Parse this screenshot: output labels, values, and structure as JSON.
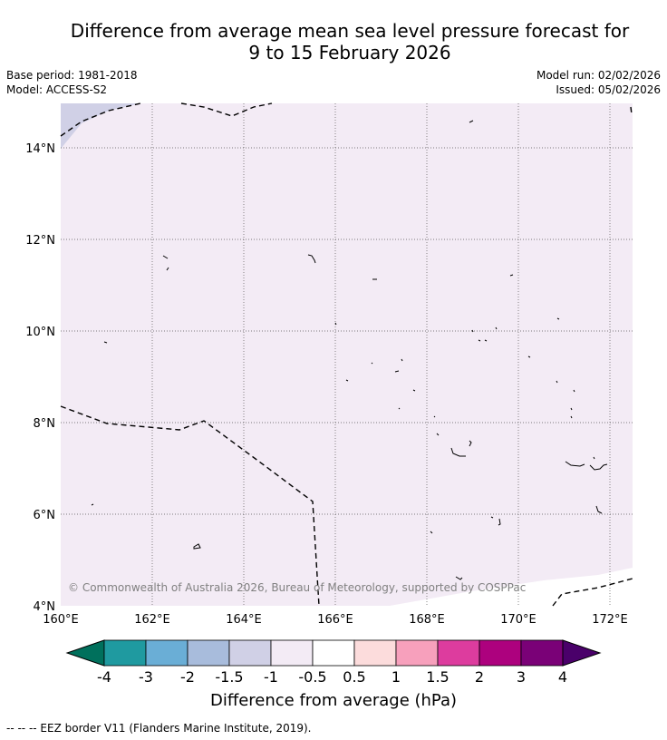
{
  "header": {
    "title_line1": "Difference from average mean sea level pressure forecast for",
    "title_line2": "9 to 15 February 2026",
    "base_period": "Base period: 1981-2018",
    "model": "Model: ACCESS-S2",
    "model_run": "Model run: 02/02/2026",
    "issued": "Issued: 05/02/2026"
  },
  "map": {
    "lon_ticks": [
      "160°E",
      "162°E",
      "164°E",
      "166°E",
      "168°E",
      "170°E",
      "172°E"
    ],
    "lat_ticks": [
      "14°N",
      "12°N",
      "10°N",
      "8°N",
      "6°N",
      "4°N"
    ],
    "copyright": "© Commonwealth of Australia 2026, Bureau of Meteorology, supported by COSPPac",
    "colors": {
      "main_field": "#f3ebf5",
      "lower_band": "#d0d0e6",
      "border": "#000000"
    }
  },
  "colorbar": {
    "labels": [
      "-4",
      "-3",
      "-2",
      "-1.5",
      "-1",
      "-0.5",
      "0.5",
      "1",
      "1.5",
      "2",
      "3",
      "4"
    ],
    "colors": [
      "#00705c",
      "#1f9aa0",
      "#6aaed6",
      "#a8bcdc",
      "#d0d0e6",
      "#f3ebf5",
      "#ffffff",
      "#fcdcdc",
      "#f7a0bc",
      "#dd3c9e",
      "#ad017e",
      "#7a0177",
      "#4a006a"
    ],
    "title": "Difference from average (hPa)"
  },
  "legend": {
    "eez_note": "--  --  -- EEZ border V11 (Flanders Marine Institute, 2019)."
  }
}
